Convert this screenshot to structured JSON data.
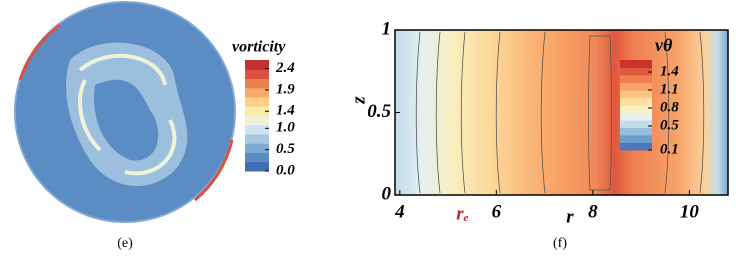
{
  "chart_data": [
    {
      "type": "contour",
      "caption": "(e)",
      "colorbar_title": "vorticity",
      "clim": [
        0,
        2.6
      ],
      "colors": [
        "#3f6fb0",
        "#5b8cc4",
        "#7fa9d3",
        "#a7c8e2",
        "#cfe3ee",
        "#eef3d8",
        "#fbeaa8",
        "#fdd08a",
        "#f9aa6a",
        "#ee7f52",
        "#dc5242",
        "#c2302f"
      ],
      "cticks": [
        {
          "value": 2.4,
          "label": "2.4"
        },
        {
          "value": 1.9,
          "label": "1.9"
        },
        {
          "value": 1.4,
          "label": "1.4"
        },
        {
          "value": 1.0,
          "label": "1.0"
        },
        {
          "value": 0.5,
          "label": "0.5"
        },
        {
          "value": 0,
          "label": "0.0"
        }
      ]
    },
    {
      "type": "contour",
      "caption": "(f)",
      "xlabel": "r",
      "ylabel": "z",
      "colorbar_title": "vθ",
      "xlim": [
        3.9,
        10.8
      ],
      "ylim": [
        0,
        1
      ],
      "xticks": [
        4,
        6,
        8,
        10
      ],
      "yticks": [
        0,
        0.5,
        1
      ],
      "clim": [
        0.1,
        1.6
      ],
      "colors": [
        "#4a78b8",
        "#6a9ccc",
        "#94bedc",
        "#c2dcea",
        "#e8f1ee",
        "#f9f2c0",
        "#fde0a0",
        "#fcc383",
        "#f8a468",
        "#f08052",
        "#e0583e",
        "#c8332c"
      ],
      "cticks": [
        1.4,
        1.1,
        0.8,
        0.5,
        0.1
      ],
      "annotations": [
        {
          "text": "rₑ",
          "x": 5.3
        }
      ]
    }
  ]
}
